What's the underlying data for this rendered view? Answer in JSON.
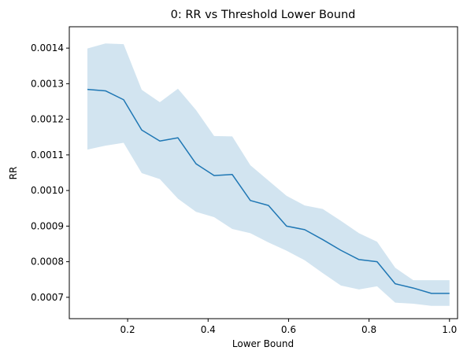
{
  "chart_data": {
    "type": "line",
    "title": "0: RR vs Threshold Lower Bound",
    "xlabel": "Lower Bound",
    "ylabel": "RR",
    "xlim": [
      0.055,
      1.02
    ],
    "ylim": [
      0.00064,
      0.00146
    ],
    "grid": false,
    "legend": "none",
    "x_ticks": [
      0.2,
      0.4,
      0.6,
      0.8,
      1.0
    ],
    "x_tick_labels": [
      "0.2",
      "0.4",
      "0.6",
      "0.8",
      "1.0"
    ],
    "y_ticks": [
      0.0007,
      0.0008,
      0.0009,
      0.001,
      0.0011,
      0.0012,
      0.0013,
      0.0014
    ],
    "y_tick_labels": [
      "0.0007",
      "0.0008",
      "0.0009",
      "0.0010",
      "0.0011",
      "0.0012",
      "0.0013",
      "0.0014"
    ],
    "series": [
      {
        "color": "#1f77b4",
        "band_color": "#1f77b4",
        "x": [
          0.1,
          0.145,
          0.19,
          0.235,
          0.28,
          0.325,
          0.37,
          0.415,
          0.46,
          0.505,
          0.55,
          0.595,
          0.64,
          0.685,
          0.73,
          0.775,
          0.82,
          0.865,
          0.91,
          0.955,
          1.0
        ],
        "values": [
          0.001284,
          0.00128,
          0.001255,
          0.00117,
          0.001139,
          0.001148,
          0.001075,
          0.001042,
          0.001045,
          0.000972,
          0.000958,
          0.0009,
          0.00089,
          0.000862,
          0.000832,
          0.000806,
          0.0008,
          0.000738,
          0.000726,
          0.000711,
          0.000711
        ],
        "lower": [
          0.001115,
          0.001126,
          0.001134,
          0.001049,
          0.001032,
          0.000977,
          0.00094,
          0.000925,
          0.000892,
          0.00088,
          0.000854,
          0.000831,
          0.000804,
          0.000768,
          0.000733,
          0.000722,
          0.000731,
          0.000685,
          0.000682,
          0.000676,
          0.000676
        ],
        "upper": [
          0.001399,
          0.001413,
          0.001411,
          0.001283,
          0.001248,
          0.001286,
          0.001226,
          0.001153,
          0.001152,
          0.001071,
          0.001028,
          0.000985,
          0.000958,
          0.000948,
          0.000915,
          0.00088,
          0.000856,
          0.000783,
          0.000748,
          0.000748,
          0.000748
        ]
      }
    ]
  }
}
